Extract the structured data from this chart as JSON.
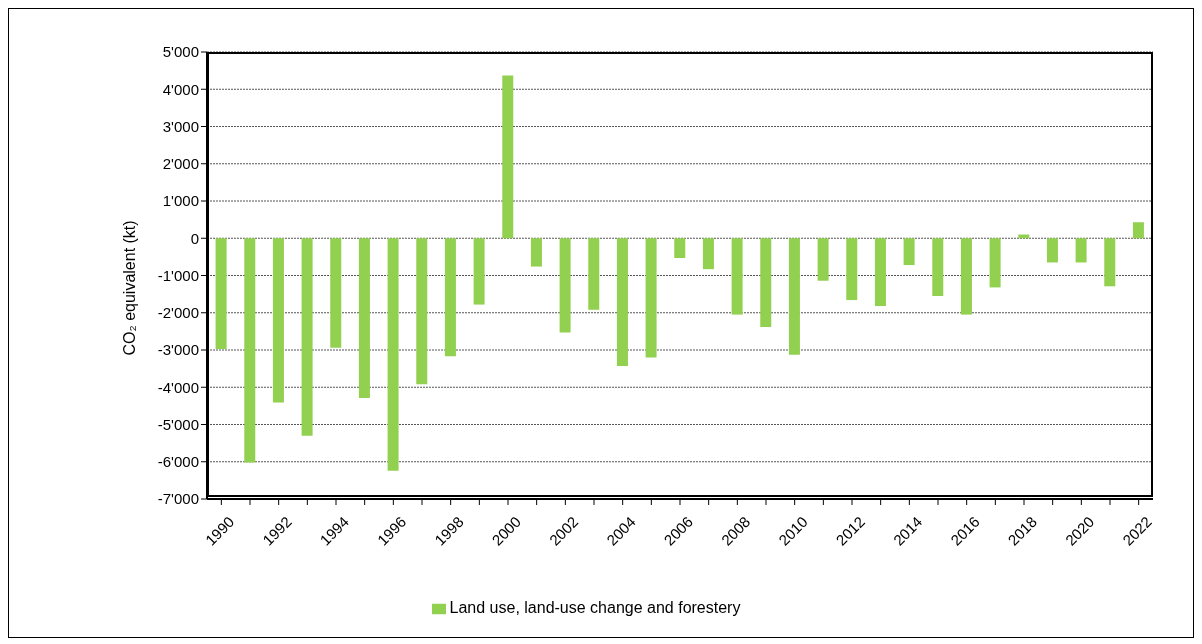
{
  "chart_data": {
    "type": "bar",
    "ylabel": "CO₂ equivalent (kt)",
    "categories": [
      "1990",
      null,
      "1992",
      null,
      "1994",
      null,
      "1996",
      null,
      "1998",
      null,
      "2000",
      null,
      "2002",
      null,
      "2004",
      null,
      "2006",
      null,
      "2008",
      null,
      "2010",
      null,
      "2012",
      null,
      "2014",
      null,
      "2016",
      null,
      "2018",
      null,
      "2020",
      null,
      "2022"
    ],
    "series": [
      {
        "name": "Land use, land-use change and forestery",
        "color": "#92d050",
        "values": [
          -2970,
          -6020,
          -4410,
          -5300,
          -2940,
          -4290,
          -6240,
          -3920,
          -3170,
          -1780,
          4370,
          -760,
          -2530,
          -1920,
          -3430,
          -3200,
          -530,
          -830,
          -2050,
          -2380,
          -3130,
          -1140,
          -1660,
          -1820,
          -720,
          -1550,
          -2050,
          -1320,
          100,
          -650,
          -650,
          -1290,
          430
        ]
      }
    ],
    "ylim": [
      -7000,
      5000
    ],
    "yticks": [
      {
        "value": -7000,
        "label": "-7'000"
      },
      {
        "value": -6000,
        "label": "-6'000"
      },
      {
        "value": -5000,
        "label": "-5'000"
      },
      {
        "value": -4000,
        "label": "-4'000"
      },
      {
        "value": -3000,
        "label": "-3'000"
      },
      {
        "value": -2000,
        "label": "-2'000"
      },
      {
        "value": -1000,
        "label": "-1'000"
      },
      0,
      {
        "value": 1000,
        "label": "1'000"
      },
      {
        "value": 2000,
        "label": "2'000"
      },
      {
        "value": 3000,
        "label": "3'000"
      },
      {
        "value": 4000,
        "label": "4'000"
      },
      {
        "value": 5000,
        "label": "5'000"
      }
    ],
    "grid": "y",
    "legend": "bottom"
  }
}
